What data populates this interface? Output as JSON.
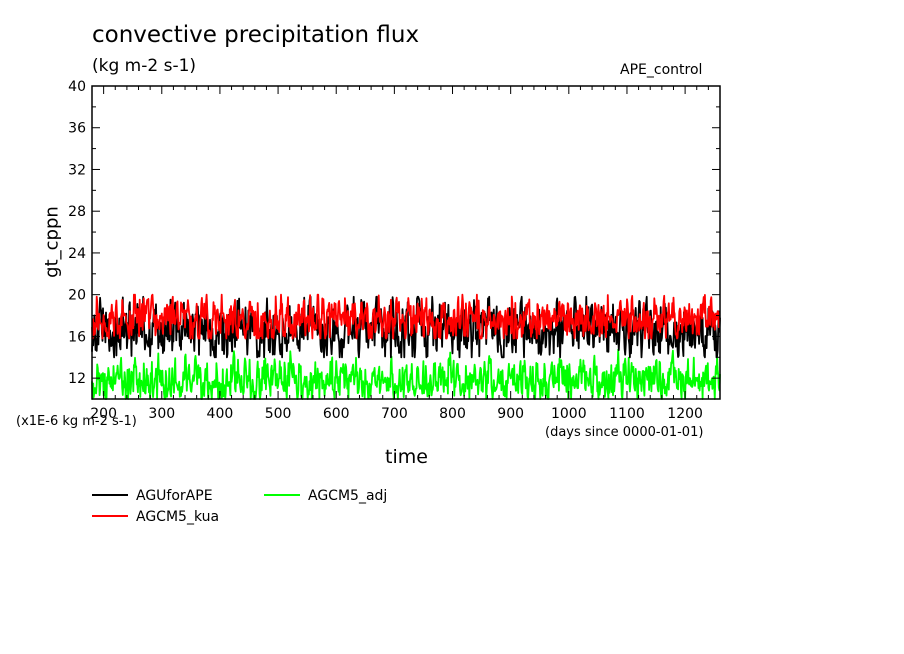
{
  "chart_data": {
    "type": "line",
    "title": "convective precipitation flux",
    "subtitle": "(kg m-2 s-1)",
    "run_label": "APE_control",
    "xlabel": "time",
    "ylabel": "gt_cppn",
    "y_units": "(x1E-6 kg m-2 s-1)",
    "x_units": "(days since 0000-01-01)",
    "xlim": [
      180,
      1260
    ],
    "ylim": [
      10,
      40
    ],
    "x_ticks": [
      200,
      300,
      400,
      500,
      600,
      700,
      800,
      900,
      1000,
      1100,
      1200
    ],
    "y_ticks": [
      12,
      16,
      20,
      24,
      28,
      32,
      36,
      40
    ],
    "grid": false,
    "legend_position": "bottom-left",
    "series": [
      {
        "name": "AGUforAPE",
        "color": "#000000",
        "x": [
          180,
          240,
          300,
          360,
          420,
          480,
          540,
          600,
          660,
          720,
          780,
          840,
          900,
          960,
          1020,
          1080,
          1140,
          1200,
          1260
        ],
        "mean": [
          16.6,
          16.5,
          16.7,
          16.6,
          16.5,
          16.6,
          16.7,
          16.5,
          16.6,
          16.6,
          16.7,
          16.6,
          16.5,
          16.7,
          16.6,
          16.5,
          16.6,
          16.5,
          16.6
        ],
        "min": 14.0,
        "max": 19.8
      },
      {
        "name": "AGCM5_kua",
        "color": "#ff0000",
        "x": [
          180,
          240,
          300,
          360,
          420,
          480,
          540,
          600,
          660,
          720,
          780,
          840,
          900,
          960,
          1020,
          1080,
          1140,
          1200,
          1260
        ],
        "mean": [
          17.7,
          17.6,
          17.8,
          17.6,
          17.5,
          17.6,
          17.8,
          17.9,
          17.6,
          17.6,
          17.5,
          17.6,
          17.5,
          17.6,
          17.5,
          17.6,
          17.5,
          17.6,
          17.5
        ],
        "min": 15.8,
        "max": 20.0
      },
      {
        "name": "AGCM5_adj",
        "color": "#00ff00",
        "x": [
          180,
          240,
          300,
          360,
          420,
          480,
          540,
          600,
          660,
          720,
          780,
          840,
          900,
          960,
          1020,
          1080,
          1140,
          1200,
          1260
        ],
        "mean": [
          11.8,
          11.9,
          11.8,
          11.9,
          11.7,
          11.8,
          11.9,
          11.9,
          11.8,
          11.9,
          11.8,
          11.9,
          11.8,
          11.9,
          11.8,
          11.8,
          11.9,
          11.8,
          11.9
        ],
        "min": 10.0,
        "max": 15.4
      }
    ]
  }
}
